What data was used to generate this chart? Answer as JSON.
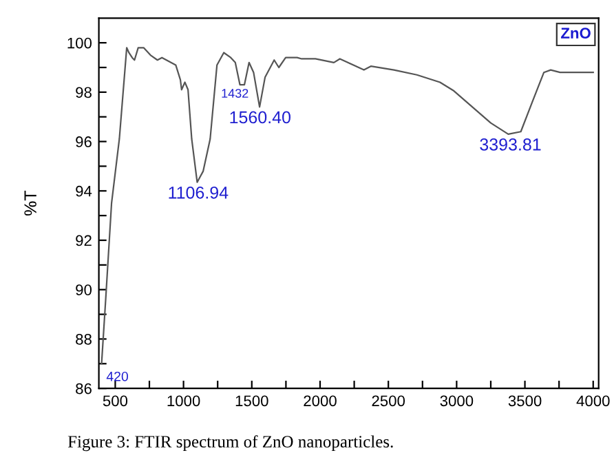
{
  "chart_data": {
    "type": "line",
    "ylabel": "%T",
    "xlim": [
      380,
      4040
    ],
    "ylim": [
      86,
      101
    ],
    "xticks": [
      500,
      {
        "value": 750,
        "label": null
      },
      1000,
      {
        "value": 1250,
        "label": null
      },
      1500,
      {
        "value": 1750,
        "label": null
      },
      2000,
      {
        "value": 2250,
        "label": null
      },
      2500,
      {
        "value": 2750,
        "label": null
      },
      3000,
      {
        "value": 3250,
        "label": null
      },
      3500,
      {
        "value": 3750,
        "label": null
      },
      4000
    ],
    "yticks": [
      86,
      {
        "value": 87,
        "label": null
      },
      88,
      {
        "value": 89,
        "label": null
      },
      90,
      {
        "value": 91,
        "label": null
      },
      92,
      {
        "value": 93,
        "label": null
      },
      94,
      {
        "value": 95,
        "label": null
      },
      96,
      {
        "value": 97,
        "label": null
      },
      98,
      {
        "value": 99,
        "label": null
      },
      100
    ],
    "grid": false,
    "legend": false,
    "marker": "none",
    "line_style": "solid",
    "series": [
      {
        "color": "#555555",
        "x": [
          400,
          430,
          473,
          530,
          584,
          600,
          624,
          641,
          668,
          708,
          758,
          809,
          842,
          943,
          977,
          986,
          1010,
          1033,
          1060,
          1100,
          1144,
          1195,
          1245,
          1295,
          1346,
          1379,
          1413,
          1446,
          1480,
          1513,
          1557,
          1597,
          1664,
          1698,
          1748,
          1832,
          1865,
          1966,
          2101,
          2145,
          2203,
          2321,
          2372,
          2541,
          2709,
          2878,
          2980,
          3115,
          3250,
          3378,
          3470,
          3554,
          3639,
          3689,
          3757,
          4000
        ],
        "values": [
          87.0,
          89.6,
          93.5,
          96.1,
          99.8,
          99.6,
          99.4,
          99.3,
          99.8,
          99.8,
          99.5,
          99.3,
          99.4,
          99.1,
          98.5,
          98.1,
          98.4,
          98.1,
          96.1,
          94.35,
          94.8,
          96.1,
          99.1,
          99.6,
          99.4,
          99.2,
          98.3,
          98.3,
          99.2,
          98.8,
          97.4,
          98.6,
          99.3,
          99.0,
          99.4,
          99.4,
          99.35,
          99.35,
          99.2,
          99.35,
          99.2,
          98.9,
          99.05,
          98.9,
          98.7,
          98.4,
          98.05,
          97.4,
          96.75,
          96.3,
          96.4,
          97.6,
          98.8,
          98.9,
          98.8,
          98.8
        ]
      }
    ],
    "annotations": [
      {
        "text": "420",
        "x": 420,
        "y": 87.0
      },
      {
        "text": "1106.94",
        "x": 1106.94,
        "y": 94.35
      },
      {
        "text": "1432",
        "x": 1432,
        "y": 98.3
      },
      {
        "text": "1560.40",
        "x": 1560.4,
        "y": 97.4
      },
      {
        "text": "3393.81",
        "x": 3393.81,
        "y": 96.3
      },
      "ZnO",
      "Figure 3: FTIR spectrum of ZnO nanoparticles."
    ]
  }
}
